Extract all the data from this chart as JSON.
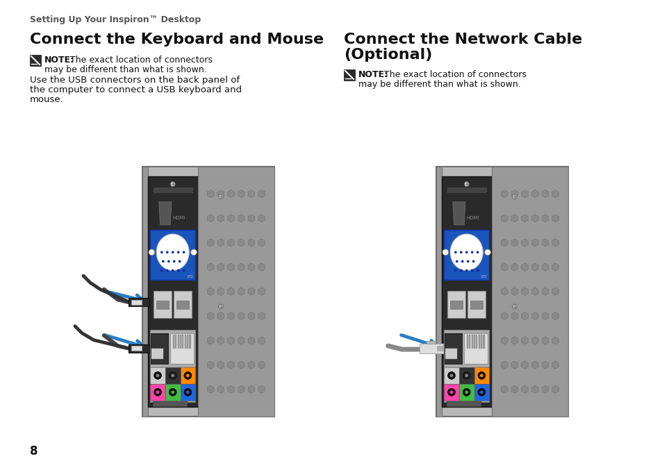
{
  "bg_color": "#ffffff",
  "header_text": "Setting Up Your Inspiron™ Desktop",
  "header_color": "#555555",
  "header_fontsize": 9.0,
  "left_title": "Connect the Keyboard and Mouse",
  "right_title_line1": "Connect the Network Cable",
  "right_title_line2": "(Optional)",
  "title_fontsize": 16,
  "title_color": "#111111",
  "note_fontsize": 9.0,
  "body_text_line1": "Use the USB connectors on the back panel of",
  "body_text_line2": "the computer to connect a USB keyboard and",
  "body_text_line3": "mouse.",
  "body_fontsize": 9.5,
  "body_color": "#111111",
  "page_number": "8",
  "arrow_color": "#2a7fc5",
  "vga_blue": "#1a55bb",
  "chassis_light": "#b8b8b8",
  "chassis_mid": "#999999",
  "chassis_dark": "#707070",
  "panel_dark": "#2a2a2a",
  "honeycomb_color": "#b0b0b0",
  "honeycomb_hole": "#8a8a8a",
  "audio_row1": [
    "#dddddd",
    "#333333",
    "#ff8800"
  ],
  "audio_row2": [
    "#ff44aa",
    "#44bb44",
    "#2266dd"
  ],
  "audio_bg_row1": [
    "#cccccc",
    "#222222",
    "#ff8800"
  ],
  "audio_bg_row2": [
    "#ff44aa",
    "#44bb44",
    "#2266dd"
  ]
}
